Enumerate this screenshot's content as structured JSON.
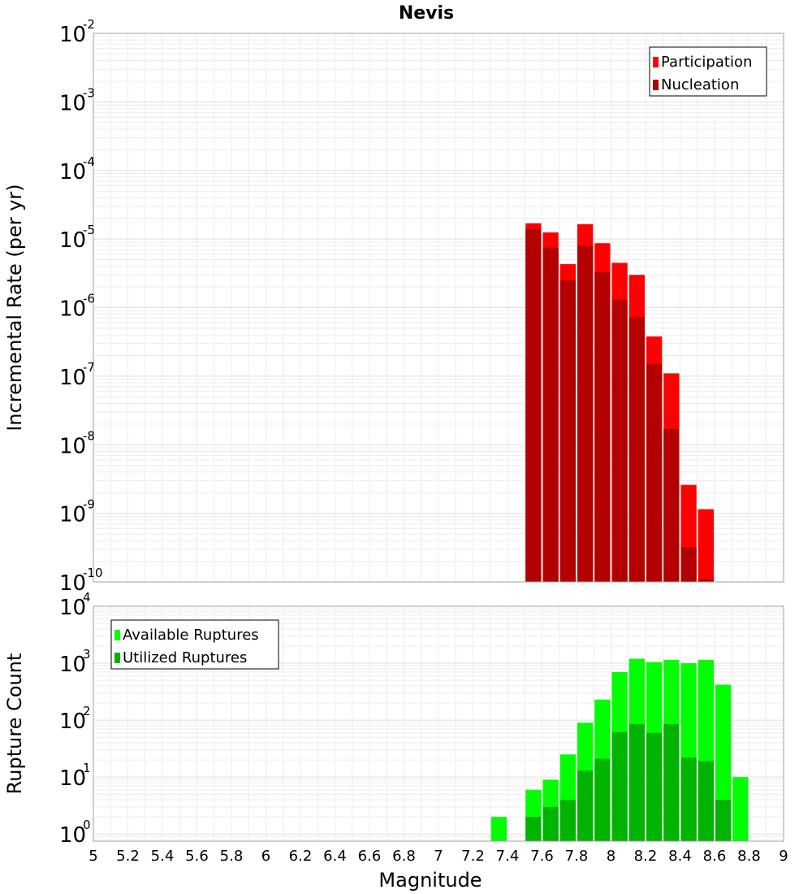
{
  "chart_data": [
    {
      "type": "bar",
      "scale": "log",
      "title": "Nevis",
      "xlabel": "Magnitude",
      "ylabel": "Incremental Rate (per yr)",
      "xlim": [
        5,
        9
      ],
      "ylim": [
        1e-10,
        0.01
      ],
      "bin_width": 0.1,
      "grid": true,
      "legend": "top-right",
      "y_ticks": [
        {
          "base": "10",
          "exp": "-2"
        },
        {
          "base": "10",
          "exp": "-3"
        },
        {
          "base": "10",
          "exp": "-4"
        },
        {
          "base": "10",
          "exp": "-5"
        },
        {
          "base": "10",
          "exp": "-6"
        },
        {
          "base": "10",
          "exp": "-7"
        },
        {
          "base": "10",
          "exp": "-8"
        },
        {
          "base": "10",
          "exp": "-9"
        },
        {
          "base": "10",
          "exp": "-10"
        }
      ],
      "series": [
        {
          "name": "Participation",
          "color": "#ff0000",
          "x": [
            7.55,
            7.65,
            7.75,
            7.85,
            7.95,
            8.05,
            8.15,
            8.25,
            8.35,
            8.45,
            8.55
          ],
          "values": [
            1.7e-05,
            1.25e-05,
            4.3e-06,
            1.65e-05,
            8.7e-06,
            4.5e-06,
            3e-06,
            3.8e-07,
            1.1e-07,
            2.6e-09,
            1.15e-09
          ]
        },
        {
          "name": "Nucleation",
          "color": "#b30000",
          "x": [
            7.55,
            7.65,
            7.75,
            7.85,
            7.95,
            8.05,
            8.15,
            8.25,
            8.35,
            8.45,
            8.55
          ],
          "values": [
            1.4e-05,
            7.5e-06,
            2.5e-06,
            8e-06,
            3.3e-06,
            1.3e-06,
            7.2e-07,
            1.5e-07,
            1.7e-08,
            3.2e-10,
            1.1e-10
          ]
        }
      ]
    },
    {
      "type": "bar",
      "scale": "log",
      "title": "",
      "xlabel": "Magnitude",
      "ylabel": "Rupture Count",
      "xlim": [
        5,
        9
      ],
      "ylim": [
        0.75,
        10000.0
      ],
      "bin_width": 0.1,
      "grid": true,
      "legend": "top-left",
      "y_ticks": [
        {
          "base": "10",
          "exp": "4"
        },
        {
          "base": "10",
          "exp": "3"
        },
        {
          "base": "10",
          "exp": "2"
        },
        {
          "base": "10",
          "exp": "1"
        },
        {
          "base": "10",
          "exp": "0"
        }
      ],
      "x_tick_labels": [
        "5",
        "5.2",
        "5.4",
        "5.6",
        "5.8",
        "6",
        "6.2",
        "6.4",
        "6.6",
        "6.8",
        "7",
        "7.2",
        "7.4",
        "7.6",
        "7.8",
        "8",
        "8.2",
        "8.4",
        "8.6",
        "8.8",
        "9"
      ],
      "series": [
        {
          "name": "Available Ruptures",
          "color": "#00ff00",
          "x": [
            7.35,
            7.55,
            7.65,
            7.75,
            7.85,
            7.95,
            8.05,
            8.15,
            8.25,
            8.35,
            8.45,
            8.55,
            8.65,
            8.75
          ],
          "values": [
            2,
            6,
            9,
            25,
            90,
            230,
            700,
            1200,
            1050,
            1150,
            1000,
            1150,
            420,
            10
          ]
        },
        {
          "name": "Utilized Ruptures",
          "color": "#00b300",
          "x": [
            7.55,
            7.65,
            7.75,
            7.85,
            7.95,
            8.05,
            8.15,
            8.25,
            8.35,
            8.45,
            8.55,
            8.65
          ],
          "values": [
            2,
            3,
            4,
            13,
            21,
            62,
            85,
            60,
            85,
            22,
            19,
            4
          ]
        }
      ]
    }
  ]
}
